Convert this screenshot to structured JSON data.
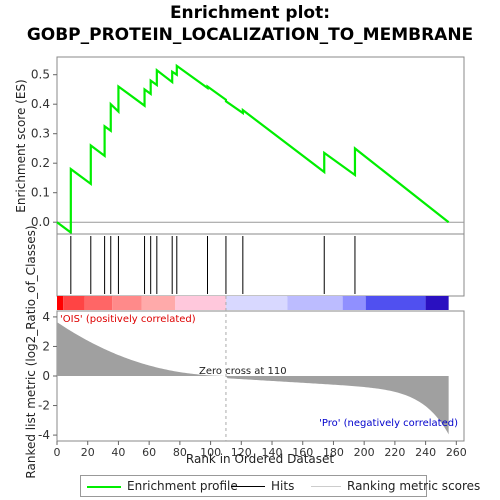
{
  "title": "Enrichment plot:\nGOBP_PROTEIN_LOCALIZATION_TO_MEMBRANE",
  "title_line1": "Enrichment plot:",
  "title_line2": "GOBP_PROTEIN_LOCALIZATION_TO_MEMBRANE",
  "colors": {
    "enrichment": "#00ee00",
    "hits": "#000000",
    "metric_bars": "#a0a0a0",
    "positive_text": "#dd0000",
    "negative_text": "#0000cc"
  },
  "chart_data": {
    "type": "line",
    "es_panel": {
      "ylabel": "Enrichment score (ES)",
      "ylim": [
        -0.04,
        0.56
      ],
      "yticks": [
        0.0,
        0.1,
        0.2,
        0.3,
        0.4,
        0.5
      ],
      "ytick_labels": [
        "0.0",
        "0.1",
        "0.2",
        "0.3",
        "0.4",
        "0.5"
      ],
      "series": [
        {
          "name": "Enrichment profile",
          "x": [
            0,
            9,
            9,
            22,
            22,
            31,
            31,
            35,
            35,
            40,
            40,
            57,
            57,
            61,
            61,
            65,
            65,
            75,
            75,
            78,
            78,
            98,
            98,
            110,
            110,
            121,
            121,
            174,
            174,
            194,
            194,
            255
          ],
          "y": [
            0.0,
            -0.035,
            0.18,
            0.13,
            0.26,
            0.225,
            0.325,
            0.31,
            0.4,
            0.375,
            0.46,
            0.395,
            0.45,
            0.435,
            0.48,
            0.465,
            0.515,
            0.475,
            0.51,
            0.5,
            0.53,
            0.455,
            0.46,
            0.415,
            0.41,
            0.37,
            0.38,
            0.17,
            0.235,
            0.16,
            0.25,
            0.0
          ]
        }
      ]
    },
    "hits": [
      9,
      22,
      31,
      35,
      40,
      57,
      61,
      65,
      75,
      78,
      98,
      110,
      121,
      174,
      194
    ],
    "metric_panel": {
      "ylabel": "Ranked list metric (log2_Ratio_of_Classes)",
      "ylim": [
        -4.4,
        4.4
      ],
      "yticks": [
        -4,
        -2,
        0,
        2,
        4
      ],
      "ytick_labels": [
        "-4",
        "-2",
        "0",
        "2",
        "4"
      ],
      "positive_label": "'OIS' (positively correlated)",
      "negative_label": "'Pro' (negatively correlated)",
      "zero_cross_label": "Zero cross at 110",
      "zero_cross": 110
    },
    "xaxis": {
      "xlabel": "Rank in Ordered Dataset",
      "xlim": [
        0,
        265
      ],
      "xticks": [
        0,
        20,
        40,
        60,
        80,
        100,
        120,
        140,
        160,
        180,
        200,
        220,
        240,
        260
      ],
      "xtick_labels": [
        "0",
        "20",
        "40",
        "60",
        "80",
        "100",
        "120",
        "140",
        "160",
        "180",
        "200",
        "220",
        "240",
        "260"
      ],
      "n_genes": 255
    },
    "legend": [
      "Enrichment profile",
      "Hits",
      "Ranking metric scores"
    ],
    "grid": false
  }
}
